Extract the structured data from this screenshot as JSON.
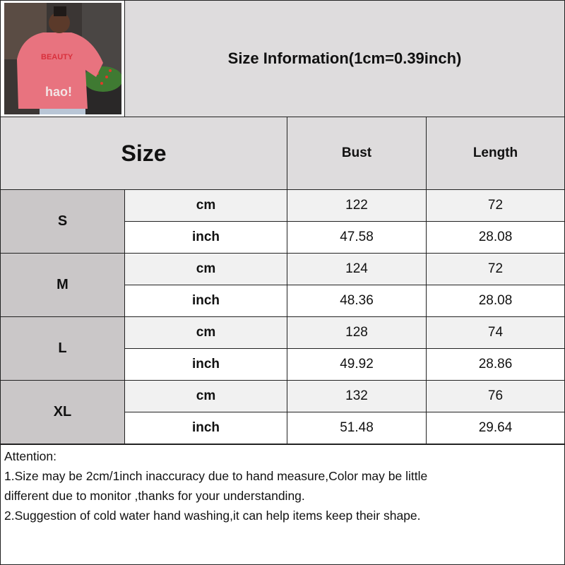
{
  "title": "Size Information(1cm=0.39inch)",
  "header": {
    "size": "Size",
    "bust": "Bust",
    "length": "Length"
  },
  "rows": [
    {
      "size": "S",
      "cm": {
        "unit": "cm",
        "bust": "122",
        "length": "72"
      },
      "inch": {
        "unit": "inch",
        "bust": "47.58",
        "length": "28.08"
      }
    },
    {
      "size": "M",
      "cm": {
        "unit": "cm",
        "bust": "124",
        "length": "72"
      },
      "inch": {
        "unit": "inch",
        "bust": "48.36",
        "length": "28.08"
      }
    },
    {
      "size": "L",
      "cm": {
        "unit": "cm",
        "bust": "128",
        "length": "74"
      },
      "inch": {
        "unit": "inch",
        "bust": "49.92",
        "length": "28.86"
      }
    },
    {
      "size": "XL",
      "cm": {
        "unit": "cm",
        "bust": "132",
        "length": "76"
      },
      "inch": {
        "unit": "inch",
        "bust": "51.48",
        "length": "29.64"
      }
    }
  ],
  "notes": {
    "heading": "Attention:",
    "line1": "1.Size may be 2cm/1inch inaccuracy due to hand measure,Color may be little",
    "line2": "different due to monitor ,thanks for your understanding.",
    "line3": "2.Suggestion of cold water hand washing,it can help items keep their shape."
  },
  "colors": {
    "header_bg": "#dedcdd",
    "size_bg": "#cac7c8",
    "cm_row_bg": "#f1f1f1",
    "hoodie": "#e8737f"
  }
}
